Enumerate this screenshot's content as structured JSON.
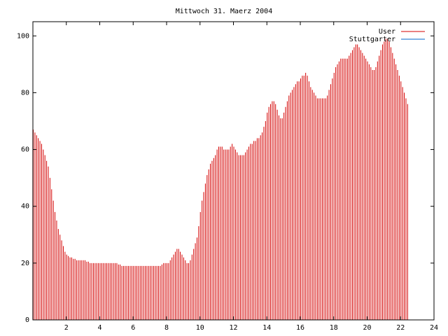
{
  "chart_data": {
    "type": "bar",
    "title": "Mittwoch 31. Maerz 2004",
    "xlabel": "",
    "ylabel": "",
    "xlim": [
      0,
      24
    ],
    "ylim": [
      0,
      105
    ],
    "x_ticks": [
      2,
      4,
      6,
      8,
      10,
      12,
      14,
      16,
      18,
      20,
      22,
      24
    ],
    "y_ticks": [
      0,
      20,
      40,
      60,
      80,
      100
    ],
    "legend_position": "top-right",
    "sample_interval_hours": 0.1,
    "series": [
      {
        "name": "User",
        "color": "#d40000",
        "values": [
          67,
          66,
          65,
          64,
          63,
          62,
          60,
          58,
          56,
          54,
          50,
          46,
          42,
          38,
          35,
          32,
          30,
          28,
          26,
          24,
          23,
          22.5,
          22,
          22,
          21.5,
          21.5,
          21,
          21,
          21,
          21,
          21,
          21,
          20.5,
          20.5,
          20,
          20,
          20,
          20,
          20,
          20,
          20,
          20,
          20,
          20,
          20,
          20,
          20,
          20,
          20,
          20,
          20,
          19.5,
          19.5,
          19,
          19,
          19,
          19,
          19,
          19,
          19,
          19,
          19,
          19,
          19,
          19,
          19,
          19,
          19,
          19,
          19,
          19,
          19,
          19,
          19,
          19,
          19,
          19,
          19.5,
          20,
          20,
          20,
          20,
          21,
          22,
          23,
          24,
          25,
          25,
          24,
          23,
          22,
          21,
          20,
          20,
          21,
          23,
          25,
          27,
          29,
          33,
          38,
          42,
          45,
          48,
          51,
          53,
          55,
          56,
          57,
          58,
          60,
          61,
          61,
          61,
          60,
          60,
          60,
          60,
          61,
          62,
          61,
          60,
          59,
          58,
          58,
          58,
          58,
          59,
          60,
          61,
          62,
          62,
          63,
          63,
          64,
          64,
          65,
          66,
          68,
          70,
          73,
          75,
          76,
          77,
          77,
          76,
          74,
          72,
          71,
          71,
          73,
          75,
          77,
          79,
          80,
          81,
          82,
          83,
          84,
          84,
          85,
          86,
          86,
          87,
          86,
          84,
          82,
          81,
          80,
          79,
          78,
          78,
          78,
          78,
          78,
          78,
          79,
          81,
          83,
          85,
          87,
          89,
          90,
          91,
          92,
          92,
          92,
          92,
          92,
          93,
          94,
          95,
          96,
          97,
          97,
          96,
          95,
          94,
          93,
          92,
          91,
          90,
          89,
          88,
          88,
          89,
          91,
          93,
          95,
          97,
          98,
          99,
          99,
          98,
          96,
          94,
          92,
          90,
          88,
          86,
          84,
          82,
          80,
          78,
          76
        ]
      },
      {
        "name": "Stuttgarter",
        "color": "#0066cc",
        "values": []
      }
    ]
  }
}
